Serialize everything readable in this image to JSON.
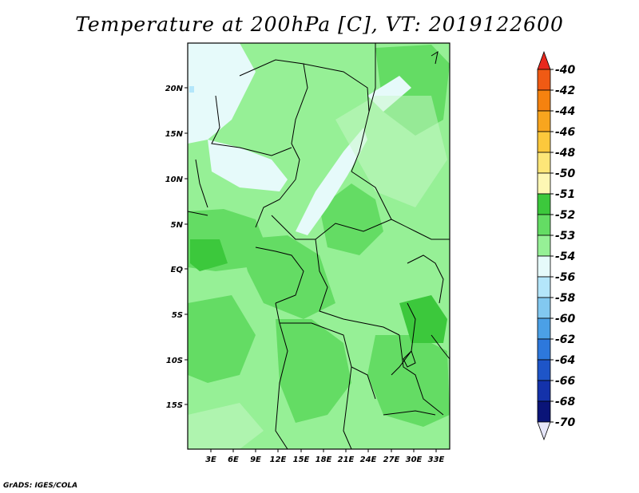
{
  "title": "Temperature at 200hPa [C], VT: 2019122600",
  "credit": "GrADS: IGES/COLA",
  "map": {
    "lat_labels": [
      "20N",
      "15N",
      "10N",
      "5N",
      "EQ",
      "5S",
      "10S",
      "15S"
    ],
    "lon_labels": [
      "3E",
      "6E",
      "9E",
      "12E",
      "15E",
      "18E",
      "21E",
      "24E",
      "27E",
      "30E",
      "33E"
    ]
  },
  "colorbar": {
    "labels": [
      "-40",
      "-42",
      "-44",
      "-46",
      "-48",
      "-50",
      "-51",
      "-52",
      "-53",
      "-54",
      "-56",
      "-58",
      "-60",
      "-62",
      "-64",
      "-66",
      "-68",
      "-70"
    ],
    "colors": [
      "#e8281e",
      "#f05a14",
      "#f5820f",
      "#f8a51e",
      "#fcc83c",
      "#fde678",
      "#fdf7b4",
      "#3cc83c",
      "#64dc64",
      "#96f096",
      "#e6fafa",
      "#b4e6fa",
      "#82c8f0",
      "#4ba0e6",
      "#2d78dc",
      "#1e55c8",
      "#1432aa",
      "#0a1478",
      "#e6e6fa"
    ]
  }
}
